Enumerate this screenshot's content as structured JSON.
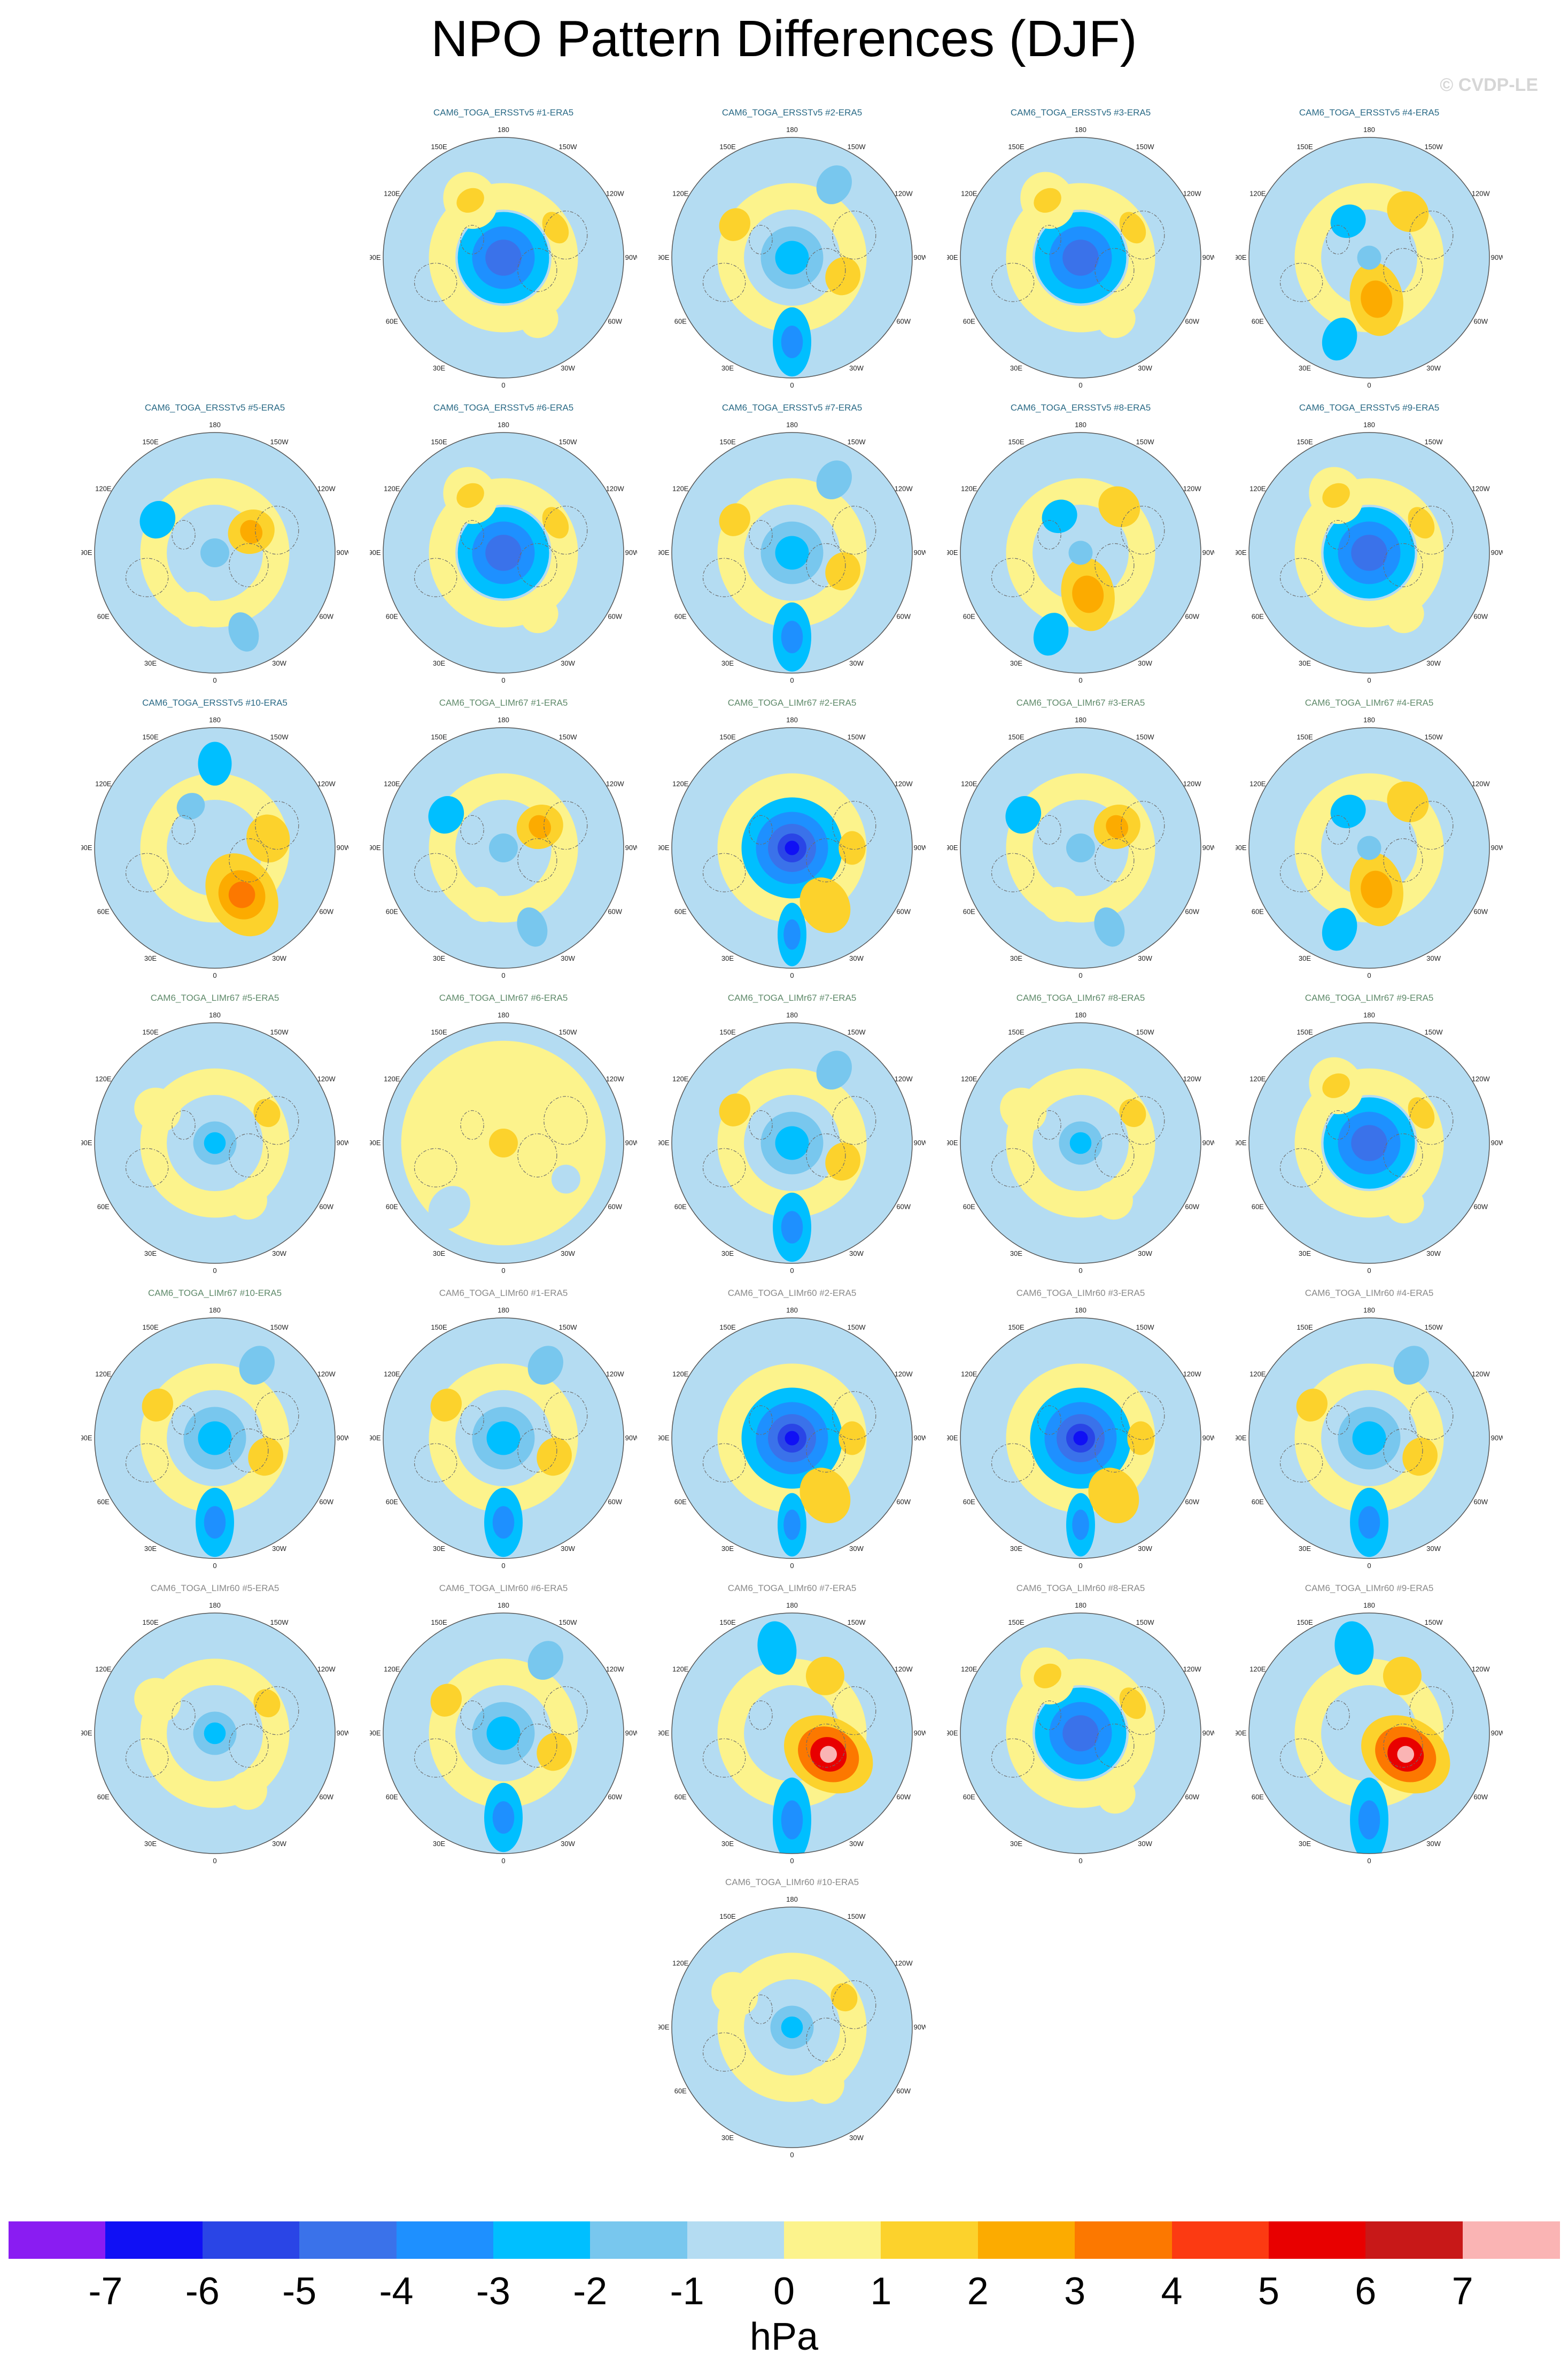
{
  "title": "NPO Pattern Differences (DJF)",
  "watermark": "© CVDP-LE",
  "meridian_labels": [
    "180",
    "150E",
    "120E",
    "90E",
    "60E",
    "30E",
    "0",
    "30W",
    "60W",
    "90W",
    "120W",
    "150W"
  ],
  "panels": [
    {
      "title": "CAM6_TOGA_ERSST​v5 #1-ERA5",
      "group": "ersst",
      "pattern": "vortex"
    },
    {
      "title": "CAM6_TOGA_ERSSTv5 #2-ERA5",
      "group": "ersst",
      "pattern": "pacneg"
    },
    {
      "title": "CAM6_TOGA_ERSSTv5 #3-ERA5",
      "group": "ersst",
      "pattern": "vortex"
    },
    {
      "title": "CAM6_TOGA_ERSSTv5 #4-ERA5",
      "group": "ersst",
      "pattern": "dipole"
    },
    {
      "title": "CAM6_TOGA_ERSSTv5 #5-ERA5",
      "group": "ersst",
      "pattern": "mixed"
    },
    {
      "title": "CAM6_TOGA_ERSSTv5 #6-ERA5",
      "group": "ersst",
      "pattern": "vortex"
    },
    {
      "title": "CAM6_TOGA_ERSSTv5 #7-ERA5",
      "group": "ersst",
      "pattern": "pacneg"
    },
    {
      "title": "CAM6_TOGA_ERSSTv5 #8-ERA5",
      "group": "ersst",
      "pattern": "dipole"
    },
    {
      "title": "CAM6_TOGA_ERSSTv5 #9-ERA5",
      "group": "ersst",
      "pattern": "vortex"
    },
    {
      "title": "CAM6_TOGA_ERSSTv5 #10-ERA5",
      "group": "ersst",
      "pattern": "strongpos"
    },
    {
      "title": "CAM6_TOGA_LIMr67 #1-ERA5",
      "group": "lim67",
      "pattern": "mixed"
    },
    {
      "title": "CAM6_TOGA_LIMr67 #2-ERA5",
      "group": "lim67",
      "pattern": "deepvortex"
    },
    {
      "title": "CAM6_TOGA_LIMr67 #3-ERA5",
      "group": "lim67",
      "pattern": "mixed"
    },
    {
      "title": "CAM6_TOGA_LIMr67 #4-ERA5",
      "group": "lim67",
      "pattern": "dipole"
    },
    {
      "title": "CAM6_TOGA_LIMr67 #5-ERA5",
      "group": "lim67",
      "pattern": "weak"
    },
    {
      "title": "CAM6_TOGA_LIMr67 #6-ERA5",
      "group": "lim67",
      "pattern": "yellow"
    },
    {
      "title": "CAM6_TOGA_LIMr67 #7-ERA5",
      "group": "lim67",
      "pattern": "pacneg"
    },
    {
      "title": "CAM6_TOGA_LIMr67 #8-ERA5",
      "group": "lim67",
      "pattern": "weak"
    },
    {
      "title": "CAM6_TOGA_LIMr67 #9-ERA5",
      "group": "lim67",
      "pattern": "vortex"
    },
    {
      "title": "CAM6_TOGA_LIMr67 #10-ERA5",
      "group": "lim67",
      "pattern": "pacneg"
    },
    {
      "title": "CAM6_TOGA_LIMr60 #1-ERA5",
      "group": "lim60",
      "pattern": "pacneg"
    },
    {
      "title": "CAM6_TOGA_LIMr60 #2-ERA5",
      "group": "lim60",
      "pattern": "deepvortex"
    },
    {
      "title": "CAM6_TOGA_LIMr60 #3-ERA5",
      "group": "lim60",
      "pattern": "deepvortex"
    },
    {
      "title": "CAM6_TOGA_LIMr60 #4-ERA5",
      "group": "lim60",
      "pattern": "pacneg"
    },
    {
      "title": "CAM6_TOGA_LIMr60 #5-ERA5",
      "group": "lim60",
      "pattern": "weak"
    },
    {
      "title": "CAM6_TOGA_LIMr60 #6-ERA5",
      "group": "lim60",
      "pattern": "pacneg"
    },
    {
      "title": "CAM6_TOGA_LIMr60 #7-ERA5",
      "group": "lim60",
      "pattern": "extremepos"
    },
    {
      "title": "CAM6_TOGA_LIMr60 #8-ERA5",
      "group": "lim60",
      "pattern": "vortex"
    },
    {
      "title": "CAM6_TOGA_LIMr60 #9-ERA5",
      "group": "lim60",
      "pattern": "extremepos"
    },
    {
      "title": "CAM6_TOGA_LIMr60 #10-ERA5",
      "group": "lim60",
      "pattern": "weak"
    }
  ],
  "colorbar": {
    "colors": [
      "#8a1cf2",
      "#1010f5",
      "#2a45e6",
      "#3a72ea",
      "#1e90ff",
      "#00bfff",
      "#78c7ee",
      "#b4dcf2",
      "#fcf38c",
      "#fcd22c",
      "#fcab00",
      "#fc7800",
      "#fc3a12",
      "#e80000",
      "#c81818",
      "#fab4b4"
    ],
    "ticks": [
      "-7",
      "-6",
      "-5",
      "-4",
      "-3",
      "-2",
      "-1",
      "0",
      "1",
      "2",
      "3",
      "4",
      "5",
      "6",
      "7"
    ],
    "units": "hPa"
  }
}
